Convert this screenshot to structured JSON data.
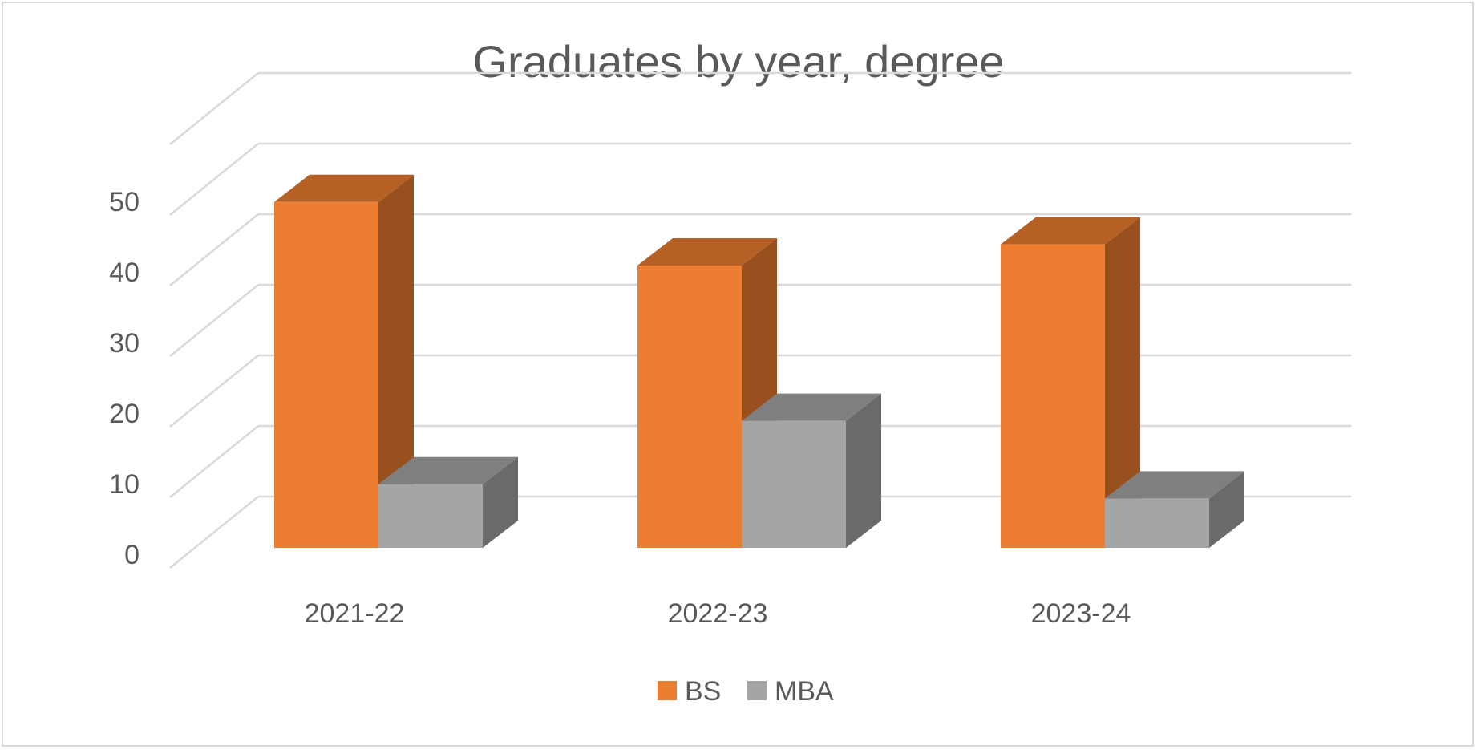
{
  "chart_data": {
    "type": "bar",
    "style": "3d-clustered-column",
    "title": "Graduates by year, degree",
    "categories": [
      "2021-22",
      "2022-23",
      "2023-24"
    ],
    "series": [
      {
        "name": "BS",
        "values": [
          49,
          40,
          43
        ],
        "color": "#ED7D31"
      },
      {
        "name": "MBA",
        "values": [
          9,
          18,
          7
        ],
        "color": "#A5A5A5"
      }
    ],
    "y_ticks": [
      "0",
      "10",
      "20",
      "30",
      "40",
      "50"
    ],
    "ylim": [
      0,
      60
    ],
    "grid": true,
    "legend": "bottom"
  }
}
